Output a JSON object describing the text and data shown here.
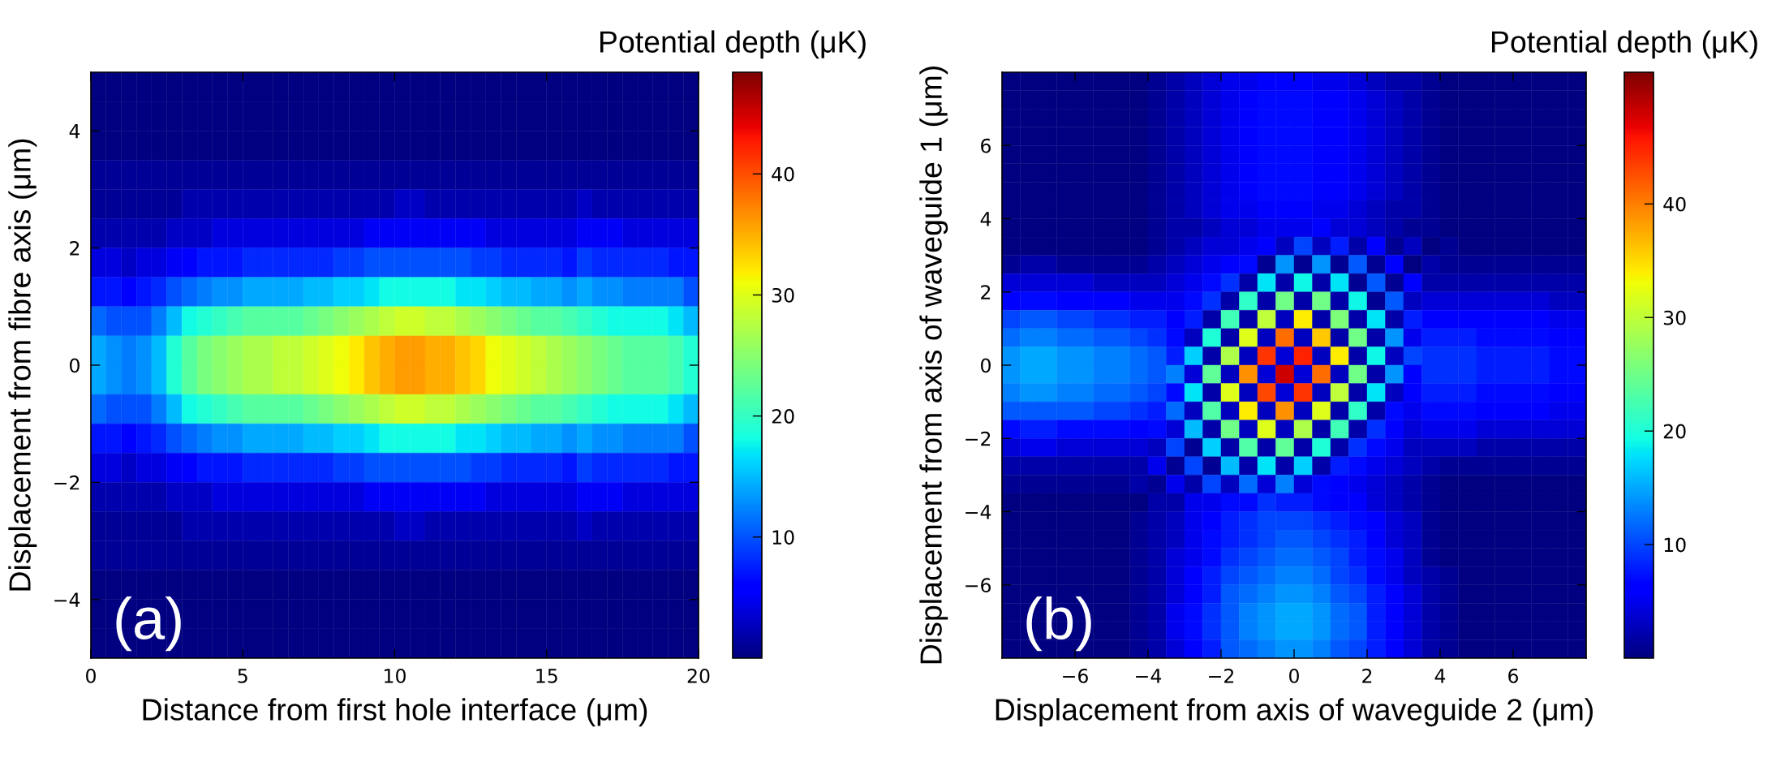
{
  "chart_data": [
    {
      "type": "heatmap",
      "xlabel": "Distance from first hole interface (μm)",
      "ylabel": "Displacement from fibre axis (μm)",
      "clabel": "Potential depth (μK)",
      "annotations": [
        "(a)"
      ],
      "xlim": [
        0,
        20
      ],
      "xticks": [
        0,
        5,
        10,
        15,
        20
      ],
      "ylim": [
        -5,
        5
      ],
      "yticks": [
        -4,
        -2,
        0,
        2,
        4
      ],
      "clim": [
        0,
        48.4
      ],
      "cticks": [
        10,
        20,
        30,
        40
      ],
      "cells": [
        [
          0,
          0,
          0,
          0,
          0,
          0,
          0,
          0,
          0,
          0,
          0,
          0,
          0,
          0,
          0,
          0,
          0,
          0,
          0,
          0,
          0,
          0,
          0,
          0,
          0,
          0,
          0,
          0,
          0,
          0,
          0,
          0,
          0,
          0,
          0,
          0,
          0,
          0,
          0,
          0
        ],
        [
          0,
          0,
          0,
          0,
          0,
          0,
          0,
          0,
          0,
          0,
          0,
          0,
          0,
          0,
          0,
          0,
          0,
          0,
          0,
          0,
          0,
          0,
          0,
          0,
          0,
          0,
          0,
          0,
          0,
          0,
          0,
          0,
          0,
          0,
          0,
          0,
          0,
          0,
          0,
          0
        ],
        [
          0,
          0,
          0,
          0,
          0,
          0,
          0,
          0,
          0,
          0,
          0,
          0,
          0,
          0,
          0,
          0,
          0,
          0,
          0,
          0,
          0,
          0,
          0,
          0,
          0,
          0,
          0,
          0,
          0,
          0,
          0,
          0,
          0,
          0,
          0,
          0,
          0,
          0,
          0,
          0
        ],
        [
          1,
          1,
          1,
          1,
          1,
          1,
          1,
          1,
          1,
          1,
          1,
          1,
          1,
          1,
          1,
          1,
          1,
          1,
          1,
          1,
          1,
          1,
          1,
          1,
          1,
          1,
          1,
          1,
          1,
          1,
          1,
          1,
          1,
          1,
          1,
          1,
          1,
          1,
          1,
          1
        ],
        [
          1,
          1,
          1,
          1,
          1,
          1,
          2,
          2,
          2,
          2,
          2,
          2,
          2,
          2,
          2,
          2,
          2,
          2,
          2,
          2,
          3,
          3,
          2,
          2,
          2,
          2,
          2,
          2,
          2,
          2,
          2,
          2,
          3,
          2,
          2,
          2,
          2,
          2,
          2,
          2
        ],
        [
          2,
          2,
          2,
          2,
          2,
          3,
          3,
          3,
          4,
          4,
          4,
          4,
          4,
          4,
          4,
          4,
          4,
          4,
          5,
          5,
          5,
          5,
          5,
          5,
          5,
          5,
          4,
          4,
          4,
          4,
          4,
          4,
          5,
          5,
          5,
          4,
          4,
          4,
          4,
          4
        ],
        [
          4,
          4,
          3,
          4,
          4,
          5,
          6,
          7,
          7,
          7,
          8,
          8,
          8,
          8,
          8,
          8,
          9,
          9,
          10,
          10,
          10,
          10,
          10,
          10,
          10,
          9,
          9,
          8,
          8,
          8,
          8,
          7,
          9,
          8,
          8,
          8,
          8,
          8,
          7,
          7
        ],
        [
          7,
          7,
          6,
          7,
          8,
          10,
          11,
          12,
          13,
          13,
          14,
          14,
          14,
          14,
          15,
          15,
          16,
          16,
          17,
          18,
          18,
          18,
          18,
          18,
          17,
          17,
          16,
          15,
          15,
          14,
          14,
          13,
          14,
          13,
          13,
          12,
          12,
          12,
          12,
          10
        ],
        [
          11,
          10,
          10,
          10,
          12,
          15,
          18,
          19,
          20,
          21,
          22,
          22,
          22,
          22,
          23,
          24,
          25,
          26,
          27,
          28,
          29,
          29,
          28,
          28,
          27,
          26,
          25,
          24,
          23,
          22,
          22,
          21,
          20,
          19,
          18,
          18,
          18,
          18,
          17,
          15
        ],
        [
          14,
          13,
          12,
          13,
          15,
          19,
          22,
          24,
          25,
          26,
          27,
          27,
          28,
          28,
          29,
          30,
          31,
          32,
          34,
          35,
          36,
          36,
          35,
          35,
          34,
          33,
          31,
          30,
          29,
          28,
          27,
          26,
          25,
          24,
          23,
          22,
          22,
          22,
          21,
          19
        ],
        [
          14,
          13,
          12,
          13,
          15,
          19,
          22,
          24,
          25,
          26,
          27,
          27,
          28,
          28,
          29,
          30,
          31,
          32,
          34,
          35,
          36,
          36,
          35,
          35,
          34,
          33,
          31,
          30,
          29,
          28,
          27,
          26,
          25,
          24,
          23,
          22,
          22,
          22,
          21,
          19
        ],
        [
          11,
          10,
          10,
          10,
          12,
          15,
          18,
          19,
          20,
          21,
          22,
          22,
          22,
          22,
          23,
          24,
          25,
          26,
          27,
          28,
          29,
          29,
          28,
          28,
          27,
          26,
          25,
          24,
          23,
          22,
          22,
          21,
          20,
          19,
          18,
          18,
          18,
          18,
          17,
          15
        ],
        [
          7,
          7,
          6,
          7,
          8,
          10,
          11,
          12,
          13,
          13,
          14,
          14,
          14,
          14,
          15,
          15,
          16,
          16,
          17,
          18,
          18,
          18,
          18,
          18,
          17,
          17,
          16,
          15,
          15,
          14,
          14,
          13,
          14,
          13,
          13,
          12,
          12,
          12,
          12,
          10
        ],
        [
          4,
          4,
          3,
          4,
          4,
          5,
          6,
          7,
          7,
          7,
          8,
          8,
          8,
          8,
          8,
          8,
          9,
          9,
          10,
          10,
          10,
          10,
          10,
          10,
          10,
          9,
          9,
          8,
          8,
          8,
          8,
          7,
          9,
          8,
          8,
          8,
          8,
          8,
          7,
          7
        ],
        [
          2,
          2,
          2,
          2,
          2,
          3,
          3,
          3,
          4,
          4,
          4,
          4,
          4,
          4,
          4,
          4,
          4,
          4,
          5,
          5,
          5,
          5,
          5,
          5,
          5,
          5,
          4,
          4,
          4,
          4,
          4,
          4,
          5,
          5,
          5,
          4,
          4,
          4,
          4,
          4
        ],
        [
          1,
          1,
          1,
          1,
          1,
          1,
          2,
          2,
          2,
          2,
          2,
          2,
          2,
          2,
          2,
          2,
          2,
          2,
          2,
          2,
          3,
          3,
          2,
          2,
          2,
          2,
          2,
          2,
          2,
          2,
          2,
          2,
          3,
          2,
          2,
          2,
          2,
          2,
          2,
          2
        ],
        [
          1,
          1,
          1,
          1,
          1,
          1,
          1,
          1,
          1,
          1,
          1,
          1,
          1,
          1,
          1,
          1,
          1,
          1,
          1,
          1,
          1,
          1,
          1,
          1,
          1,
          1,
          1,
          1,
          1,
          1,
          1,
          1,
          1,
          1,
          1,
          1,
          1,
          1,
          1,
          1
        ],
        [
          0,
          0,
          0,
          0,
          0,
          0,
          0,
          0,
          0,
          0,
          0,
          0,
          0,
          0,
          0,
          0,
          0,
          0,
          0,
          0,
          0,
          0,
          0,
          0,
          0,
          0,
          0,
          0,
          0,
          0,
          0,
          0,
          0,
          0,
          0,
          0,
          0,
          0,
          0,
          0
        ],
        [
          0,
          0,
          0,
          0,
          0,
          0,
          0,
          0,
          0,
          0,
          0,
          0,
          0,
          0,
          0,
          0,
          0,
          0,
          0,
          0,
          0,
          0,
          0,
          0,
          0,
          0,
          0,
          0,
          0,
          0,
          0,
          0,
          0,
          0,
          0,
          0,
          0,
          0,
          0,
          0
        ],
        [
          0,
          0,
          0,
          0,
          0,
          0,
          0,
          0,
          0,
          0,
          0,
          0,
          0,
          0,
          0,
          0,
          0,
          0,
          0,
          0,
          0,
          0,
          0,
          0,
          0,
          0,
          0,
          0,
          0,
          0,
          0,
          0,
          0,
          0,
          0,
          0,
          0,
          0,
          0,
          0
        ]
      ]
    },
    {
      "type": "heatmap",
      "xlabel": "Displacement from axis of waveguide 2 (μm)",
      "ylabel": "Displacement from axis of waveguide 1 (μm)",
      "clabel": "Potential depth (μK)",
      "annotations": [
        "(b)"
      ],
      "xlim": [
        -8,
        8
      ],
      "xticks": [
        -6,
        -4,
        -2,
        0,
        2,
        4,
        6
      ],
      "ylim": [
        -8,
        8
      ],
      "yticks": [
        -6,
        -4,
        -2,
        0,
        2,
        4,
        6
      ],
      "clim": [
        0,
        51.6
      ],
      "cticks": [
        10,
        20,
        30,
        40
      ],
      "cells": [
        [
          0,
          0,
          0,
          0,
          0,
          0,
          0,
          0,
          1,
          2,
          3,
          4,
          5,
          5,
          6,
          6,
          6,
          5,
          5,
          4,
          3,
          2,
          2,
          1,
          0,
          0,
          0,
          0,
          0,
          0,
          0,
          0
        ],
        [
          0,
          0,
          0,
          0,
          0,
          0,
          0,
          0,
          1,
          2,
          3,
          4,
          5,
          6,
          7,
          7,
          7,
          6,
          6,
          5,
          4,
          3,
          2,
          1,
          0,
          0,
          0,
          0,
          0,
          0,
          0,
          0
        ],
        [
          0,
          0,
          0,
          0,
          0,
          0,
          0,
          0,
          1,
          2,
          3,
          4,
          5,
          6,
          7,
          7,
          7,
          6,
          6,
          5,
          4,
          3,
          2,
          1,
          0,
          0,
          0,
          0,
          0,
          0,
          0,
          0
        ],
        [
          0,
          0,
          0,
          0,
          0,
          0,
          0,
          0,
          1,
          2,
          3,
          4,
          5,
          6,
          7,
          7,
          7,
          6,
          6,
          5,
          4,
          3,
          2,
          1,
          0,
          0,
          0,
          0,
          0,
          0,
          0,
          0
        ],
        [
          0,
          0,
          0,
          0,
          0,
          0,
          0,
          0,
          1,
          2,
          3,
          4,
          5,
          6,
          7,
          7,
          7,
          6,
          6,
          5,
          4,
          3,
          2,
          1,
          0,
          0,
          0,
          0,
          0,
          0,
          0,
          0
        ],
        [
          0,
          0,
          0,
          0,
          0,
          0,
          0,
          0,
          1,
          2,
          3,
          4,
          5,
          6,
          7,
          7,
          7,
          6,
          6,
          5,
          4,
          3,
          2,
          1,
          0,
          0,
          0,
          0,
          0,
          0,
          0,
          0
        ],
        [
          0,
          0,
          0,
          0,
          0,
          0,
          0,
          0,
          1,
          2,
          3,
          4,
          5,
          6,
          7,
          7,
          7,
          6,
          6,
          5,
          4,
          3,
          2,
          1,
          0,
          0,
          0,
          0,
          0,
          0,
          0,
          0
        ],
        [
          0,
          0,
          0,
          0,
          0,
          0,
          0,
          0,
          1,
          2,
          3,
          4,
          5,
          5,
          6,
          6,
          6,
          5,
          5,
          4,
          3,
          2,
          2,
          1,
          0,
          0,
          0,
          0,
          0,
          0,
          0,
          0
        ],
        [
          0,
          0,
          0,
          0,
          0,
          0,
          0,
          0,
          1,
          2,
          2,
          3,
          4,
          4,
          5,
          5,
          5,
          6,
          4,
          4,
          3,
          2,
          1,
          1,
          0,
          0,
          0,
          0,
          0,
          0,
          0,
          0
        ],
        [
          0,
          0,
          0,
          0,
          0,
          0,
          0,
          0,
          1,
          2,
          3,
          4,
          4,
          5,
          6,
          3,
          10,
          3,
          8,
          2,
          6,
          1,
          3,
          0,
          1,
          0,
          0,
          0,
          0,
          0,
          0,
          0
        ],
        [
          1,
          2,
          2,
          1,
          1,
          1,
          1,
          1,
          2,
          3,
          4,
          5,
          6,
          7,
          1,
          14,
          1,
          14,
          1,
          11,
          1,
          6,
          0,
          2,
          1,
          1,
          1,
          1,
          1,
          1,
          1,
          1
        ],
        [
          4,
          4,
          4,
          4,
          4,
          3,
          3,
          3,
          3,
          4,
          5,
          7,
          9,
          2,
          18,
          2,
          19,
          2,
          18,
          1,
          11,
          1,
          6,
          2,
          2,
          2,
          2,
          2,
          2,
          2,
          2,
          2
        ],
        [
          6,
          7,
          7,
          6,
          6,
          6,
          6,
          5,
          5,
          5,
          7,
          9,
          2,
          21,
          2,
          25,
          2,
          25,
          2,
          19,
          1,
          11,
          3,
          4,
          4,
          4,
          4,
          4,
          4,
          4,
          3,
          3
        ],
        [
          10,
          11,
          11,
          10,
          10,
          9,
          9,
          8,
          8,
          6,
          8,
          2,
          22,
          2,
          30,
          3,
          34,
          2,
          26,
          2,
          18,
          2,
          8,
          6,
          6,
          6,
          6,
          6,
          6,
          6,
          5,
          5
        ],
        [
          12,
          13,
          13,
          12,
          12,
          11,
          11,
          10,
          9,
          7,
          3,
          20,
          2,
          32,
          3,
          41,
          3,
          36,
          2,
          25,
          2,
          14,
          5,
          8,
          8,
          8,
          7,
          7,
          7,
          7,
          6,
          6
        ],
        [
          14,
          15,
          15,
          14,
          14,
          13,
          13,
          12,
          11,
          8,
          17,
          2,
          29,
          3,
          44,
          4,
          45,
          3,
          34,
          2,
          19,
          3,
          10,
          9,
          9,
          9,
          8,
          8,
          8,
          8,
          7,
          7
        ],
        [
          14,
          15,
          15,
          14,
          14,
          13,
          13,
          12,
          11,
          13,
          4,
          24,
          3,
          39,
          4,
          48,
          4,
          41,
          3,
          25,
          2,
          14,
          6,
          9,
          9,
          9,
          8,
          8,
          8,
          8,
          7,
          7
        ],
        [
          13,
          14,
          14,
          13,
          13,
          12,
          12,
          11,
          10,
          7,
          18,
          2,
          32,
          3,
          43,
          4,
          44,
          3,
          30,
          2,
          18,
          3,
          6,
          8,
          8,
          8,
          7,
          7,
          7,
          7,
          6,
          6
        ],
        [
          11,
          11,
          11,
          11,
          11,
          10,
          10,
          9,
          8,
          12,
          3,
          23,
          3,
          34,
          3,
          39,
          3,
          32,
          2,
          21,
          2,
          7,
          5,
          7,
          7,
          7,
          6,
          6,
          6,
          6,
          5,
          5
        ],
        [
          7,
          8,
          8,
          7,
          7,
          7,
          7,
          6,
          7,
          4,
          16,
          2,
          25,
          3,
          32,
          3,
          29,
          2,
          22,
          2,
          9,
          6,
          4,
          5,
          5,
          5,
          4,
          4,
          4,
          4,
          4,
          4
        ],
        [
          4,
          5,
          5,
          4,
          4,
          4,
          4,
          4,
          3,
          10,
          1,
          17,
          2,
          23,
          2,
          24,
          2,
          20,
          2,
          9,
          7,
          5,
          3,
          3,
          3,
          3,
          2,
          2,
          2,
          2,
          2,
          2
        ],
        [
          2,
          2,
          2,
          2,
          2,
          2,
          2,
          2,
          5,
          1,
          10,
          1,
          16,
          2,
          18,
          2,
          17,
          2,
          8,
          7,
          5,
          4,
          3,
          2,
          1,
          1,
          1,
          1,
          1,
          1,
          1,
          1
        ],
        [
          1,
          1,
          1,
          1,
          1,
          1,
          1,
          2,
          1,
          5,
          2,
          10,
          3,
          12,
          4,
          13,
          4,
          7,
          6,
          5,
          4,
          3,
          2,
          1,
          0,
          0,
          0,
          0,
          0,
          0,
          0,
          0
        ],
        [
          0,
          0,
          0,
          0,
          0,
          0,
          0,
          0,
          2,
          2,
          5,
          5,
          7,
          7,
          9,
          8,
          8,
          7,
          6,
          6,
          4,
          3,
          2,
          1,
          0,
          0,
          0,
          0,
          0,
          0,
          0,
          0
        ],
        [
          0,
          0,
          0,
          0,
          0,
          0,
          0,
          1,
          2,
          3,
          5,
          6,
          8,
          9,
          10,
          10,
          10,
          9,
          8,
          7,
          6,
          4,
          3,
          1,
          0,
          0,
          0,
          0,
          0,
          0,
          0,
          0
        ],
        [
          0,
          0,
          0,
          0,
          0,
          0,
          0,
          1,
          2,
          3,
          5,
          7,
          8,
          9,
          10,
          11,
          11,
          10,
          9,
          8,
          6,
          4,
          3,
          1,
          0,
          0,
          0,
          0,
          0,
          0,
          0,
          0
        ],
        [
          0,
          0,
          0,
          0,
          0,
          0,
          0,
          1,
          2,
          4,
          5,
          7,
          9,
          10,
          11,
          12,
          12,
          11,
          10,
          8,
          7,
          5,
          3,
          1,
          0,
          0,
          0,
          0,
          0,
          0,
          0,
          0
        ],
        [
          0,
          0,
          0,
          0,
          0,
          0,
          0,
          1,
          2,
          4,
          6,
          8,
          10,
          11,
          12,
          13,
          13,
          12,
          10,
          9,
          7,
          5,
          3,
          2,
          1,
          0,
          0,
          0,
          0,
          0,
          0,
          0
        ],
        [
          0,
          0,
          0,
          0,
          0,
          0,
          0,
          1,
          2,
          4,
          6,
          8,
          11,
          12,
          13,
          14,
          14,
          13,
          11,
          10,
          8,
          6,
          4,
          2,
          1,
          0,
          0,
          0,
          0,
          0,
          0,
          0
        ],
        [
          0,
          0,
          0,
          0,
          0,
          0,
          0,
          1,
          2,
          5,
          7,
          9,
          11,
          13,
          14,
          15,
          15,
          14,
          12,
          11,
          8,
          6,
          4,
          2,
          1,
          0,
          0,
          0,
          0,
          0,
          0,
          0
        ],
        [
          0,
          0,
          0,
          0,
          0,
          0,
          0,
          1,
          2,
          5,
          7,
          9,
          11,
          13,
          14,
          15,
          15,
          14,
          12,
          11,
          8,
          6,
          4,
          2,
          1,
          0,
          0,
          0,
          0,
          0,
          0,
          0
        ],
        [
          0,
          0,
          0,
          0,
          0,
          0,
          0,
          1,
          2,
          4,
          6,
          8,
          11,
          12,
          13,
          14,
          14,
          13,
          11,
          10,
          8,
          6,
          4,
          2,
          1,
          0,
          0,
          0,
          0,
          0,
          0,
          0
        ]
      ]
    }
  ]
}
